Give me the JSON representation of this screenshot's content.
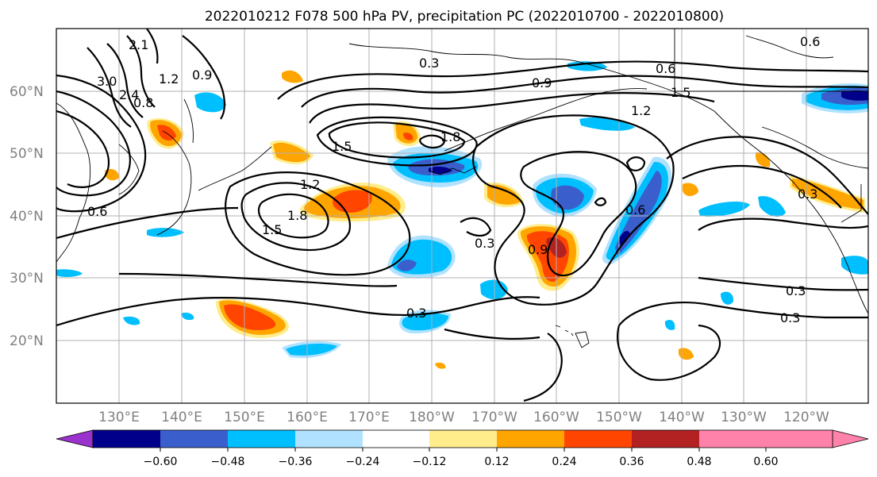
{
  "title": "2022010212 F078 500 hPa PV, precipitation PC (2022010700 - 2022010800)",
  "lat_labels": [
    "60°N",
    "50°N",
    "40°N",
    "30°N",
    "20°N"
  ],
  "lon_labels": [
    "130°E",
    "140°E",
    "150°E",
    "160°E",
    "170°E",
    "180°W",
    "170°W",
    "160°W",
    "150°W",
    "140°W",
    "130°W",
    "120°W"
  ],
  "colorbar": {
    "colors": [
      "#9a32cd",
      "#00008b",
      "#3a5fcd",
      "#00bfff",
      "#b0e2ff",
      "#ffffff",
      "#ffec8b",
      "#ffa500",
      "#ff4500",
      "#b22222",
      "#ff82ab"
    ],
    "tick_labels": [
      "−0.60",
      "−0.48",
      "−0.36",
      "−0.24",
      "−0.12",
      "0.12",
      "0.24",
      "0.36",
      "0.48",
      "0.60"
    ]
  },
  "contour_labels": [
    "0.3",
    "0.6",
    "0.9",
    "1.5",
    "1.2",
    "0.6",
    "3.0",
    "1.2",
    "2.1",
    "0.9",
    "1.5",
    "1.2",
    "1.8",
    "1.5",
    "1.8",
    "0.3",
    "0.9",
    "0.6",
    "0.3",
    "0.3",
    "0.3",
    "0.3",
    "0.6",
    "0.8",
    "2.4"
  ]
}
